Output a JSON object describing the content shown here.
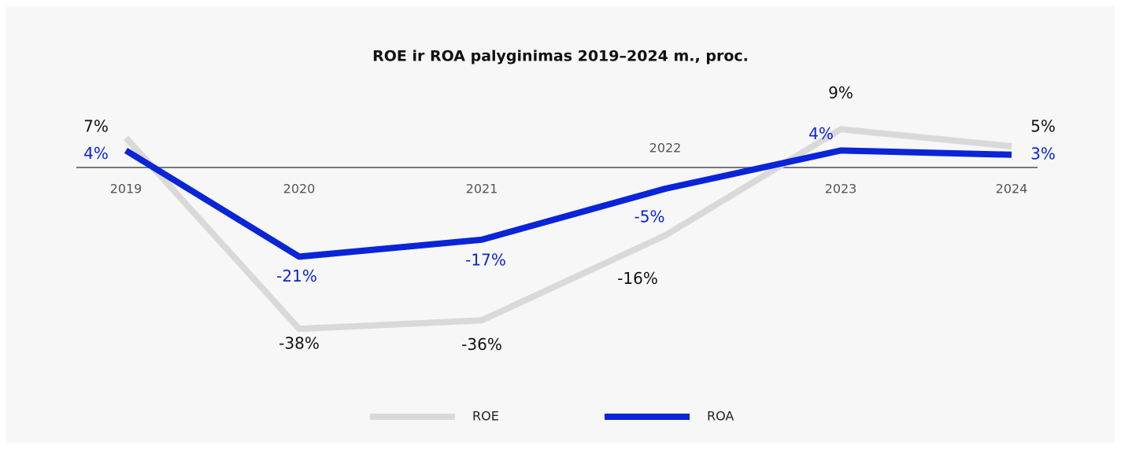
{
  "chart_data": {
    "type": "line",
    "title": "ROE ir ROA palyginimas 2019–2024 m., proc.",
    "categories": [
      "2019",
      "2020",
      "2021",
      "2022",
      "2023",
      "2024"
    ],
    "ylim": [
      -45,
      15
    ],
    "series": [
      {
        "name": "ROE",
        "color": "#d9d9d9",
        "values": [
          7,
          -38,
          -36,
          -16,
          9,
          5
        ],
        "value_labels": [
          "7%",
          "-38%",
          "-36%",
          "-16%",
          "9%",
          "5%"
        ]
      },
      {
        "name": "ROA",
        "color": "#0a24d8",
        "values": [
          4,
          -21,
          -17,
          -5,
          4,
          3
        ],
        "value_labels": [
          "4%",
          "-21%",
          "-17%",
          "-5%",
          "4%",
          "3%"
        ]
      }
    ]
  }
}
